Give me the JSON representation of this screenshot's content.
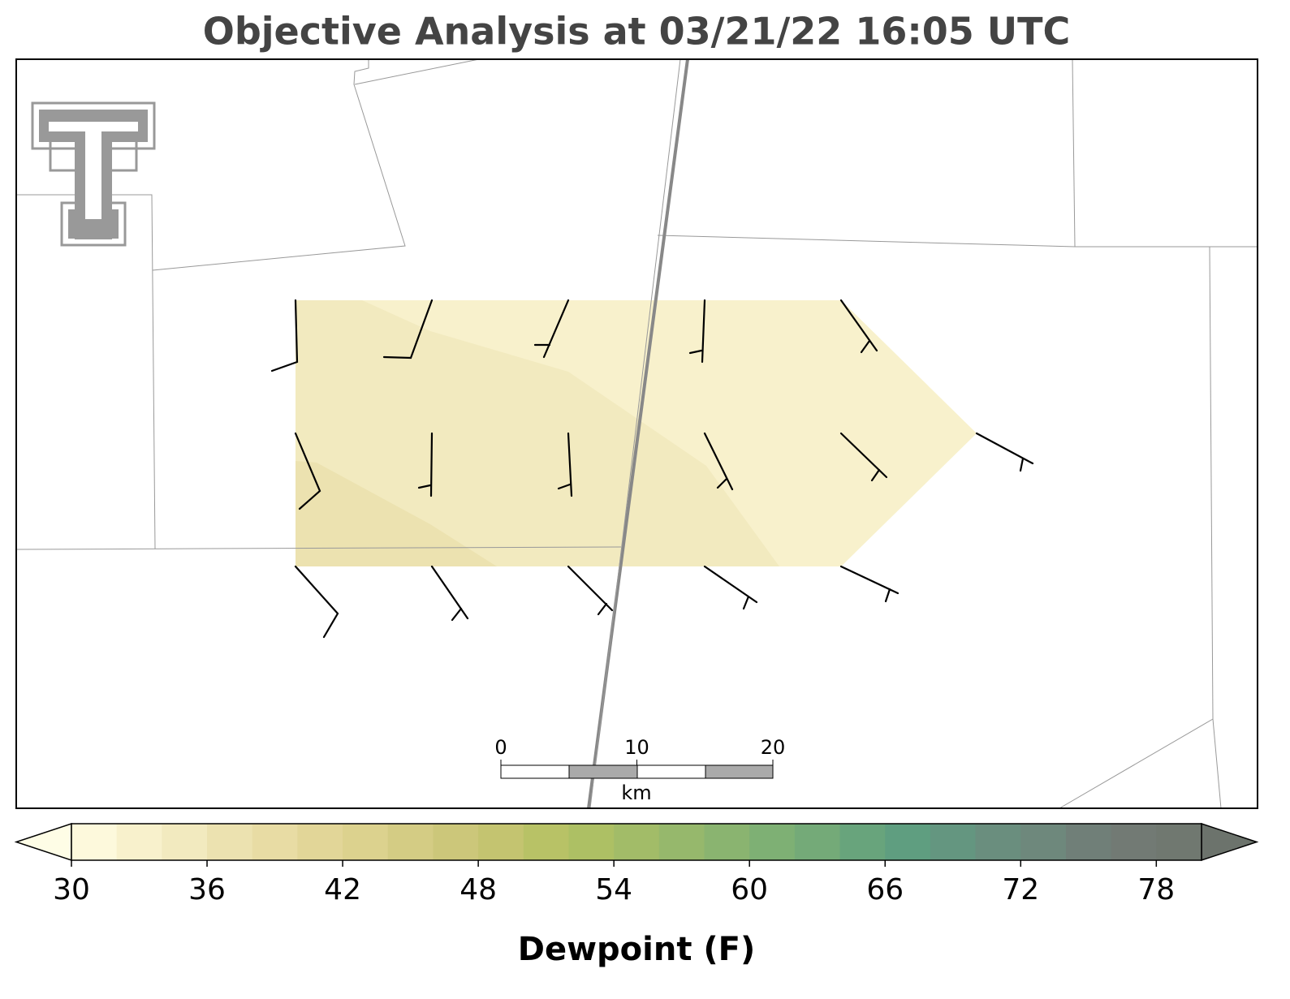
{
  "chart_data": {
    "type": "map",
    "title": "Objective Analysis at 03/21/22 16:05 UTC",
    "colorbar": {
      "label": "Dewpoint (F)",
      "lim": [
        30,
        80
      ],
      "ticks": [
        30,
        36,
        42,
        48,
        54,
        60,
        66,
        72,
        78
      ],
      "colors": [
        "#fdf9dc",
        "#f8f1cc",
        "#f2eabf",
        "#ece2b0",
        "#e8dca4",
        "#e2d698",
        "#dcd28e",
        "#d4cc84",
        "#ccc77a",
        "#c4c470",
        "#b8c266",
        "#adc064",
        "#a2bc68",
        "#96b86c",
        "#8ab470",
        "#7eb074",
        "#74aa78",
        "#68a47c",
        "#5f9e80",
        "#649680",
        "#6a8e7e",
        "#6e887c",
        "#707f78",
        "#727a74",
        "#707870"
      ],
      "under_color": "#fefde6",
      "over_color": "#6c736c"
    },
    "scale_bar": {
      "ticks": [
        0,
        10,
        20
      ],
      "unit": "km"
    }
  }
}
